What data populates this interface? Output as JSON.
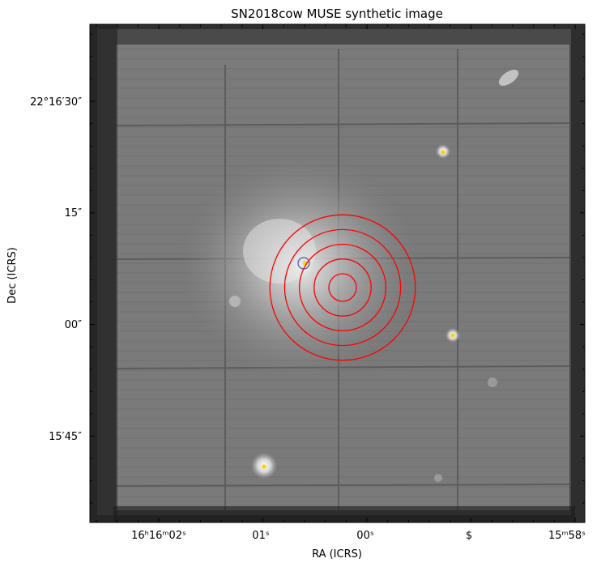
{
  "figure": {
    "title": "SN2018cow MUSE synthetic image",
    "xlabel": "RA (ICRS)",
    "ylabel": "Dec (ICRS)",
    "ra_ticks": [
      {
        "text": "16ʰ16ᵐ02ˢ"
      },
      {
        "text": "01ˢ"
      },
      {
        "text": "00ˢ"
      },
      {
        "text": "$"
      },
      {
        "text": "15ᵐ58ˢ"
      }
    ],
    "dec_ticks": [
      {
        "text": "22°16′30″"
      },
      {
        "text": "15″"
      },
      {
        "text": "00″"
      },
      {
        "text": "15′45″"
      }
    ],
    "colors": {
      "contours": "#ff0000",
      "stars": "#ffd400"
    },
    "rings": 5
  }
}
